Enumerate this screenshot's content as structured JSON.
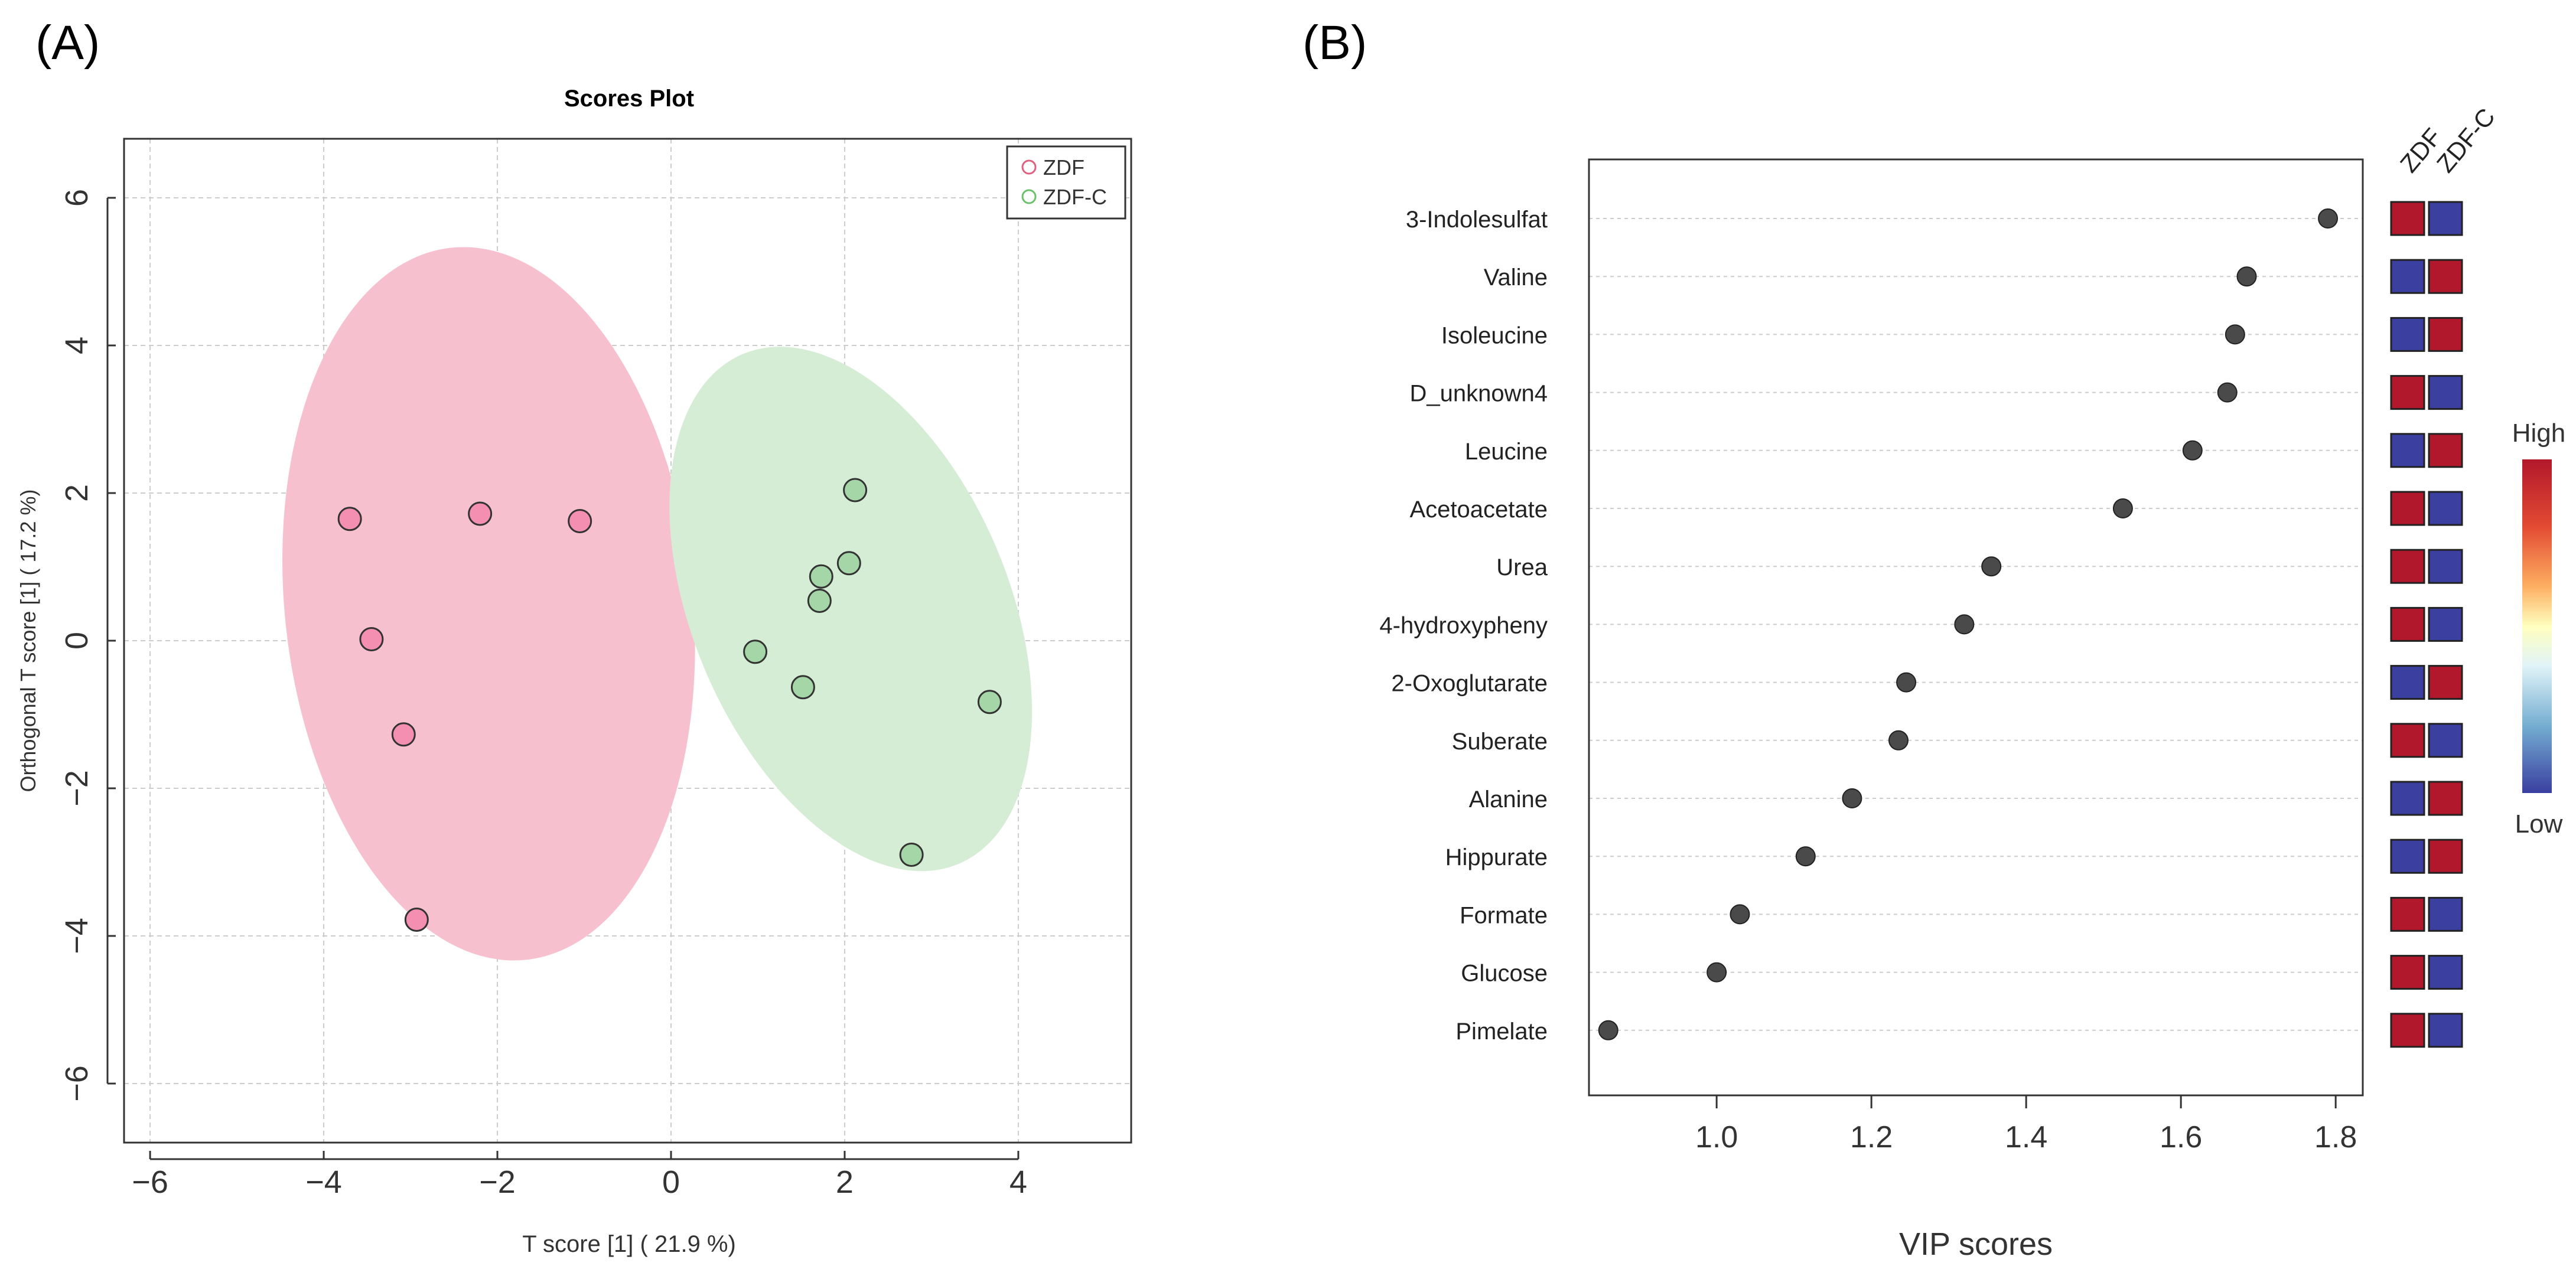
{
  "panel_labels": {
    "a": "(A)",
    "b": "(B)"
  },
  "colors": {
    "zdf_fill": "#f48fb1",
    "zdf_ellipse": "#f7c0cf",
    "zdf_legend": "#e0607e",
    "zdfc_fill": "#a5d6a7",
    "zdfc_ellipse": "#d5edd5",
    "zdfc_legend": "#6cc06c",
    "dot_dark": "#4a4a4a",
    "heat_high": "#b2182b",
    "heat_low": "#3a3fa0",
    "grid": "#cccccc",
    "axis": "#333333"
  },
  "chart_data": [
    {
      "type": "scatter",
      "title": "Scores Plot",
      "xlabel": "T score [1] ( 21.9 %)",
      "ylabel": "Orthogonal T score [1] ( 17.2 %)",
      "xlim": [
        -6.3,
        5.3
      ],
      "ylim": [
        -6.8,
        6.8
      ],
      "xticks": [
        -6,
        -4,
        -2,
        0,
        2,
        4
      ],
      "yticks": [
        -6,
        -4,
        -2,
        0,
        2,
        4,
        6
      ],
      "xtick_labels": [
        "−6",
        "−4",
        "−2",
        "0",
        "2",
        "4"
      ],
      "ytick_labels": [
        "−6",
        "−4",
        "−2",
        "0",
        "2",
        "4",
        "6"
      ],
      "grid": true,
      "legend_position": "top-right",
      "series": [
        {
          "name": "ZDF",
          "color_key": "zdf",
          "points": [
            [
              -3.7,
              1.65
            ],
            [
              -2.2,
              1.72
            ],
            [
              -1.05,
              1.62
            ],
            [
              -3.45,
              0.02
            ],
            [
              -3.08,
              -1.27
            ],
            [
              -2.93,
              -3.78
            ]
          ],
          "ellipse": {
            "cx": -2.1,
            "cy": 0.5,
            "rx": 4.85,
            "ry": 2.35,
            "angle_deg": -96
          }
        },
        {
          "name": "ZDF-C",
          "color_key": "zdfc",
          "points": [
            [
              2.12,
              2.04
            ],
            [
              2.05,
              1.05
            ],
            [
              1.73,
              0.87
            ],
            [
              1.71,
              0.54
            ],
            [
              0.97,
              -0.15
            ],
            [
              1.52,
              -0.63
            ],
            [
              3.67,
              -0.83
            ],
            [
              2.77,
              -2.9
            ]
          ],
          "ellipse": {
            "cx": 2.07,
            "cy": 0.43,
            "rx": 3.75,
            "ry": 1.82,
            "angle_deg": -113
          }
        }
      ]
    },
    {
      "type": "dot",
      "xlabel": "VIP scores",
      "xlim": [
        0.835,
        1.835
      ],
      "xticks": [
        1.0,
        1.2,
        1.4,
        1.6,
        1.8
      ],
      "xtick_labels": [
        "1.0",
        "1.2",
        "1.4",
        "1.6",
        "1.8"
      ],
      "heatmap_columns": [
        "ZDF",
        "ZDF-C"
      ],
      "legend_high": "High",
      "legend_low": "Low",
      "items": [
        {
          "name": "3-Indolesulfat",
          "vip": 1.79,
          "zdf": "high",
          "zdfc": "low"
        },
        {
          "name": "Valine",
          "vip": 1.685,
          "zdf": "low",
          "zdfc": "high"
        },
        {
          "name": "Isoleucine",
          "vip": 1.67,
          "zdf": "low",
          "zdfc": "high"
        },
        {
          "name": "D_unknown4",
          "vip": 1.66,
          "zdf": "high",
          "zdfc": "low"
        },
        {
          "name": "Leucine",
          "vip": 1.615,
          "zdf": "low",
          "zdfc": "high"
        },
        {
          "name": "Acetoacetate",
          "vip": 1.525,
          "zdf": "high",
          "zdfc": "low"
        },
        {
          "name": "Urea",
          "vip": 1.355,
          "zdf": "high",
          "zdfc": "low"
        },
        {
          "name": "4-hydroxypheny",
          "vip": 1.32,
          "zdf": "high",
          "zdfc": "low"
        },
        {
          "name": "2-Oxoglutarate",
          "vip": 1.245,
          "zdf": "low",
          "zdfc": "high"
        },
        {
          "name": "Suberate",
          "vip": 1.235,
          "zdf": "high",
          "zdfc": "low"
        },
        {
          "name": "Alanine",
          "vip": 1.175,
          "zdf": "low",
          "zdfc": "high"
        },
        {
          "name": "Hippurate",
          "vip": 1.115,
          "zdf": "low",
          "zdfc": "high"
        },
        {
          "name": "Formate",
          "vip": 1.03,
          "zdf": "high",
          "zdfc": "low"
        },
        {
          "name": "Glucose",
          "vip": 1.0,
          "zdf": "high",
          "zdfc": "low"
        },
        {
          "name": "Pimelate",
          "vip": 0.86,
          "zdf": "high",
          "zdfc": "low"
        }
      ]
    }
  ]
}
